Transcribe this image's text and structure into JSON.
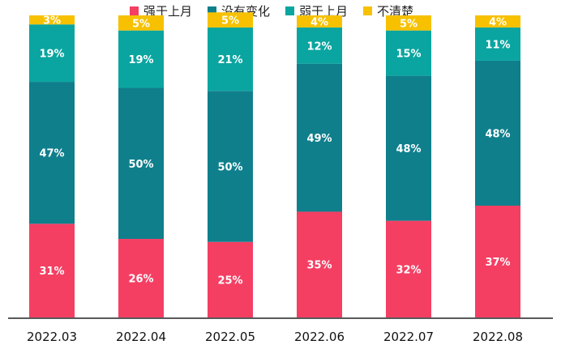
{
  "chart_data": {
    "type": "bar",
    "stacked": true,
    "percent": true,
    "categories": [
      "2022.03",
      "2022.04",
      "2022.05",
      "2022.06",
      "2022.07",
      "2022.08"
    ],
    "series": [
      {
        "name": "强于上月",
        "color": "#F43F63",
        "values": [
          31,
          26,
          25,
          35,
          32,
          37
        ],
        "labels": [
          "31%",
          "26%",
          "25%",
          "35%",
          "32%",
          "37%"
        ]
      },
      {
        "name": "没有变化",
        "color": "#0F7F8C",
        "values": [
          47,
          50,
          50,
          49,
          48,
          48
        ],
        "labels": [
          "47%",
          "50%",
          "50%",
          "49%",
          "48%",
          "48%"
        ]
      },
      {
        "name": "弱于上月",
        "color": "#0AA5A0",
        "values": [
          19,
          19,
          21,
          12,
          15,
          11
        ],
        "labels": [
          "19%",
          "19%",
          "21%",
          "12%",
          "15%",
          "11%"
        ]
      },
      {
        "name": "不清楚",
        "color": "#F7C100",
        "values": [
          3,
          5,
          5,
          4,
          5,
          4
        ],
        "labels": [
          "3%",
          "5%",
          "5%",
          "4%",
          "5%",
          "4%"
        ]
      }
    ],
    "ylim": [
      0,
      100
    ],
    "legend_position": "top",
    "grid": false
  }
}
